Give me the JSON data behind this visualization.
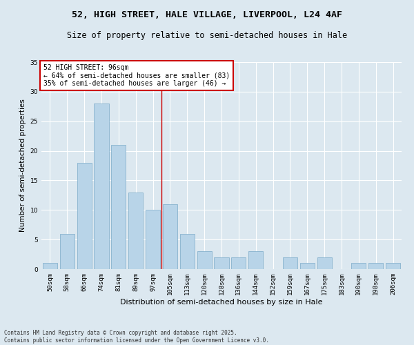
{
  "title1": "52, HIGH STREET, HALE VILLAGE, LIVERPOOL, L24 4AF",
  "title2": "Size of property relative to semi-detached houses in Hale",
  "xlabel": "Distribution of semi-detached houses by size in Hale",
  "ylabel": "Number of semi-detached properties",
  "categories": [
    "50sqm",
    "58sqm",
    "66sqm",
    "74sqm",
    "81sqm",
    "89sqm",
    "97sqm",
    "105sqm",
    "113sqm",
    "120sqm",
    "128sqm",
    "136sqm",
    "144sqm",
    "152sqm",
    "159sqm",
    "167sqm",
    "175sqm",
    "183sqm",
    "190sqm",
    "198sqm",
    "206sqm"
  ],
  "values": [
    1,
    6,
    18,
    28,
    21,
    13,
    10,
    11,
    6,
    3,
    2,
    2,
    3,
    0,
    2,
    1,
    2,
    0,
    1,
    1,
    1
  ],
  "bar_color": "#b8d4e8",
  "bar_edge_color": "#7aaac8",
  "background_color": "#dce8f0",
  "grid_color": "#ffffff",
  "red_line_x": 6.5,
  "annotation_text": "52 HIGH STREET: 96sqm\n← 64% of semi-detached houses are smaller (83)\n35% of semi-detached houses are larger (46) →",
  "annotation_box_color": "#ffffff",
  "annotation_edge_color": "#cc0000",
  "footer_text": "Contains HM Land Registry data © Crown copyright and database right 2025.\nContains public sector information licensed under the Open Government Licence v3.0.",
  "ylim": [
    0,
    35
  ],
  "yticks": [
    0,
    5,
    10,
    15,
    20,
    25,
    30,
    35
  ],
  "title1_fontsize": 9.5,
  "title2_fontsize": 8.5,
  "xlabel_fontsize": 8,
  "ylabel_fontsize": 7.5,
  "tick_fontsize": 6.5,
  "annotation_fontsize": 7,
  "footer_fontsize": 5.5
}
